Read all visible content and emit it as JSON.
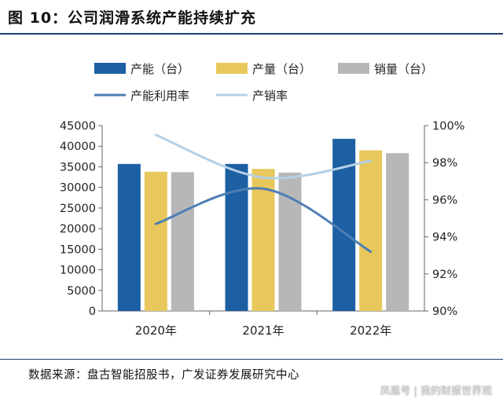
{
  "header": {
    "title": "图 10：公司润滑系统产能持续扩充"
  },
  "footer": {
    "source": "数据来源：盘古智能招股书，广发证券发展研究中心",
    "watermark": "凤凰号 | 我的财报世界观"
  },
  "chart_data": {
    "type": "bar",
    "categories": [
      "2020年",
      "2021年",
      "2022年"
    ],
    "series": [
      {
        "name": "产能（台）",
        "kind": "bar",
        "axis": "left",
        "color": "#1c5fa3",
        "values": [
          35700,
          35700,
          41800
        ]
      },
      {
        "name": "产量（台）",
        "kind": "bar",
        "axis": "left",
        "color": "#e8c85c",
        "values": [
          33800,
          34500,
          39000
        ]
      },
      {
        "name": "销量（台）",
        "kind": "bar",
        "axis": "left",
        "color": "#b7b7b9",
        "values": [
          33700,
          33600,
          38300
        ]
      },
      {
        "name": "产能利用率",
        "kind": "line",
        "axis": "right",
        "color": "#4f7fb4",
        "values": [
          94.7,
          96.6,
          93.2
        ]
      },
      {
        "name": "产销率",
        "kind": "line",
        "axis": "right",
        "color": "#b4d0e6",
        "values": [
          99.5,
          97.2,
          98.1
        ]
      }
    ],
    "y_left": {
      "min": 0,
      "max": 45000,
      "step": 5000,
      "ticks": [
        "0",
        "5000",
        "10000",
        "15000",
        "20000",
        "25000",
        "30000",
        "35000",
        "40000",
        "45000"
      ]
    },
    "y_right": {
      "min": 90,
      "max": 100,
      "step": 2,
      "ticks": [
        "90%",
        "92%",
        "94%",
        "96%",
        "98%",
        "100%"
      ]
    },
    "legend": "top",
    "grid": false
  }
}
